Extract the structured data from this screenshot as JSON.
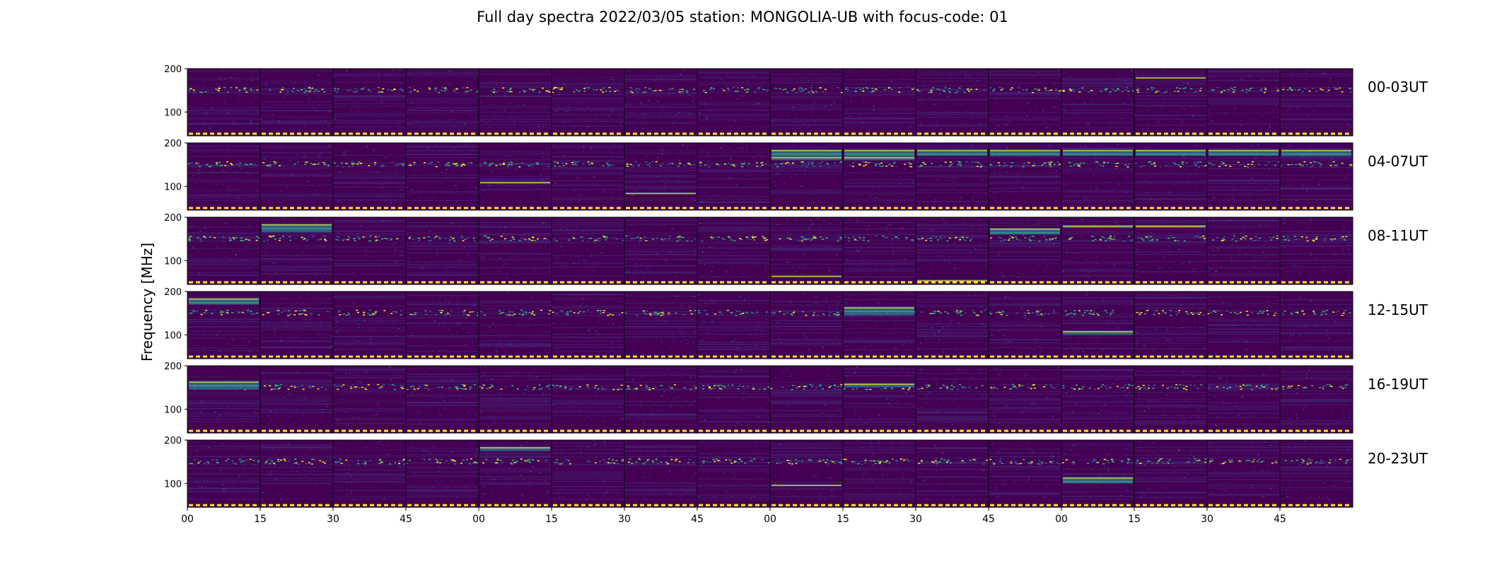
{
  "title": "Full day spectra 2022/03/05 station: MONGOLIA-UB with focus-code: 01",
  "ylabel": "Frequency [MHz]",
  "colors": {
    "background": "#440154",
    "low": "#46317e",
    "mid": "#31688e",
    "high": "#35b779",
    "peak": "#fde725",
    "marker": "#fde725"
  },
  "chart_data": {
    "type": "heatmap",
    "colormap": "viridis",
    "rows": [
      "00-03UT",
      "04-07UT",
      "08-11UT",
      "12-15UT",
      "16-19UT",
      "20-23UT"
    ],
    "panels_per_row": 16,
    "minutes_per_panel": 15,
    "y_ticks": [
      100,
      200
    ],
    "ylim": [
      45,
      200
    ],
    "x_ticks": [
      "00",
      "15",
      "30",
      "45",
      "00",
      "15",
      "30",
      "45",
      "00",
      "15",
      "30",
      "45",
      "00",
      "15",
      "30",
      "45"
    ],
    "persistent_band_mhz": [
      146,
      158
    ],
    "bright_features": [
      {
        "row": 0,
        "panels": [
          13
        ],
        "freq": 180
      },
      {
        "row": 1,
        "panels": [
          8,
          9
        ],
        "freq": [
          160,
          185
        ]
      },
      {
        "row": 1,
        "panels": [
          4
        ],
        "freq": 110
      },
      {
        "row": 1,
        "panels": [
          6
        ],
        "freq": 85
      },
      {
        "row": 1,
        "panels": [
          10,
          11,
          12,
          13,
          14,
          15
        ],
        "freq": [
          170,
          185
        ]
      },
      {
        "row": 2,
        "panels": [
          1
        ],
        "freq": [
          165,
          185
        ]
      },
      {
        "row": 2,
        "panels": [
          11
        ],
        "freq": [
          160,
          175
        ]
      },
      {
        "row": 2,
        "panels": [
          12,
          13
        ],
        "freq": [
          175,
          182
        ]
      },
      {
        "row": 2,
        "panels": [
          10
        ],
        "freq": 55
      },
      {
        "row": 2,
        "panels": [
          8
        ],
        "freq": 65
      },
      {
        "row": 3,
        "panels": [
          0
        ],
        "freq": [
          170,
          185
        ]
      },
      {
        "row": 3,
        "panels": [
          9
        ],
        "freq": [
          145,
          165
        ]
      },
      {
        "row": 3,
        "panels": [
          12
        ],
        "freq": [
          100,
          110
        ]
      },
      {
        "row": 4,
        "panels": [
          0
        ],
        "freq": [
          145,
          165
        ]
      },
      {
        "row": 4,
        "panels": [
          9
        ],
        "freq": [
          150,
          160
        ]
      },
      {
        "row": 5,
        "panels": [
          4
        ],
        "freq": [
          175,
          185
        ]
      },
      {
        "row": 5,
        "panels": [
          8
        ],
        "freq": 97
      },
      {
        "row": 5,
        "panels": [
          12
        ],
        "freq": [
          100,
          115
        ]
      }
    ]
  }
}
